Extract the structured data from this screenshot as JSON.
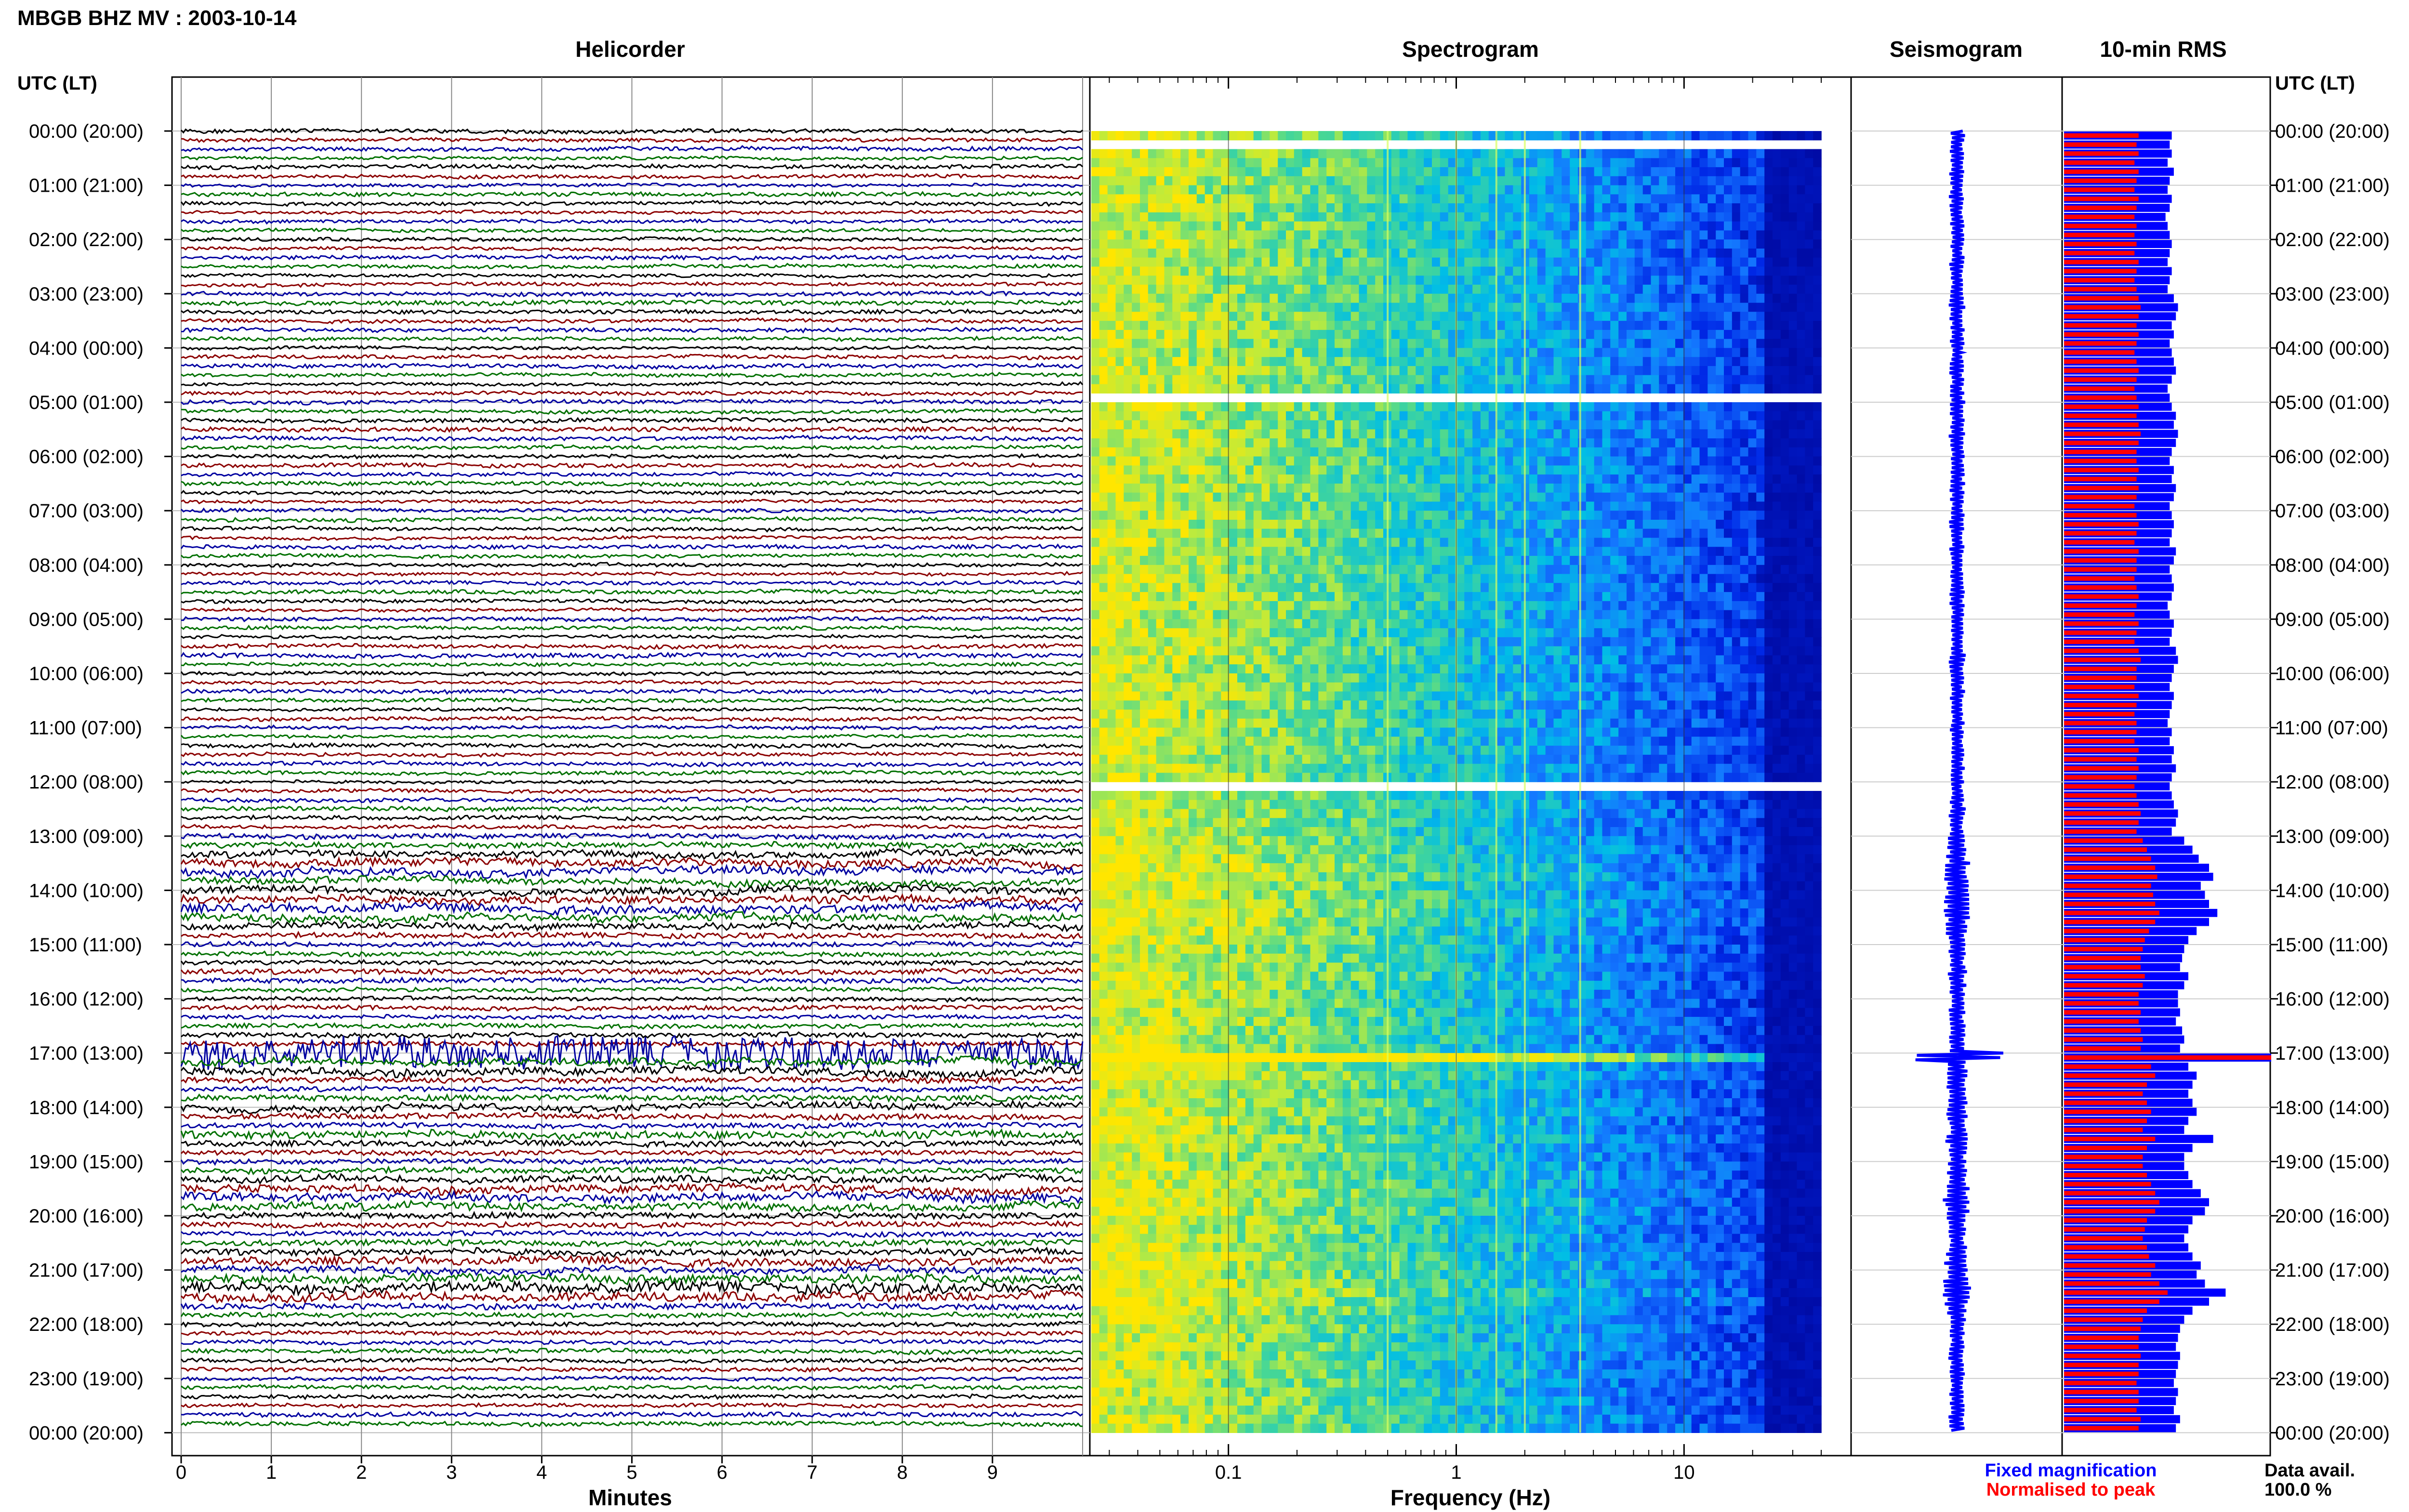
{
  "header": {
    "station": "MBGB BHZ MV : 2003-10-14"
  },
  "panels": {
    "helicorder_title": "Helicorder",
    "spectrogram_title": "Spectrogram",
    "seismogram_title": "Seismogram",
    "rms_title": "10-min RMS"
  },
  "axes": {
    "left_header": "UTC (LT)",
    "right_header": "UTC (LT)",
    "helicorder_xlabel": "Minutes",
    "spectrogram_xlabel": "Frequency (Hz)",
    "minute_ticks": [
      "0",
      "1",
      "2",
      "3",
      "4",
      "5",
      "6",
      "7",
      "8",
      "9"
    ],
    "frequency_ticks": [
      "0.1",
      "1",
      "10"
    ]
  },
  "legend": {
    "fixed": "Fixed magnification",
    "normalised": "Normalised to peak",
    "fixed_color": "#0000ff",
    "normalised_color": "#ff0000"
  },
  "availability": {
    "label": "Data avail.",
    "value": "100.0 %"
  },
  "colors": {
    "trace_colors": [
      "#000000",
      "#8b0000",
      "#0000a0",
      "#007000"
    ]
  },
  "chart_data": {
    "type": "heatmap",
    "hour_labels": [
      "00:00 (20:00)",
      "01:00 (21:00)",
      "02:00 (22:00)",
      "03:00 (23:00)",
      "04:00 (00:00)",
      "05:00 (01:00)",
      "06:00 (02:00)",
      "07:00 (03:00)",
      "08:00 (04:00)",
      "09:00 (05:00)",
      "10:00 (06:00)",
      "11:00 (07:00)",
      "12:00 (08:00)",
      "13:00 (09:00)",
      "14:00 (10:00)",
      "15:00 (11:00)",
      "16:00 (12:00)",
      "17:00 (13:00)",
      "18:00 (14:00)",
      "19:00 (15:00)",
      "20:00 (16:00)",
      "21:00 (17:00)",
      "22:00 (18:00)",
      "23:00 (19:00)",
      "00:00 (20:00)"
    ],
    "rows_per_hour": 6,
    "minutes_range": [
      0,
      10
    ],
    "frequency_range": [
      0.025,
      40
    ],
    "frequency_scale": "log",
    "data_gaps_hours": [
      0.2,
      4.75,
      12.0
    ],
    "rms_fixed": [
      0.52,
      0.51,
      0.52,
      0.5,
      0.53,
      0.51,
      0.5,
      0.52,
      0.51,
      0.49,
      0.5,
      0.51,
      0.52,
      0.51,
      0.5,
      0.52,
      0.51,
      0.5,
      0.53,
      0.55,
      0.54,
      0.52,
      0.53,
      0.51,
      0.52,
      0.53,
      0.54,
      0.52,
      0.5,
      0.51,
      0.52,
      0.54,
      0.53,
      0.55,
      0.54,
      0.52,
      0.51,
      0.53,
      0.52,
      0.54,
      0.53,
      0.51,
      0.52,
      0.53,
      0.52,
      0.51,
      0.54,
      0.53,
      0.51,
      0.52,
      0.53,
      0.52,
      0.5,
      0.51,
      0.53,
      0.52,
      0.51,
      0.54,
      0.55,
      0.53,
      0.52,
      0.51,
      0.53,
      0.52,
      0.51,
      0.5,
      0.52,
      0.51,
      0.53,
      0.52,
      0.54,
      0.52,
      0.51,
      0.52,
      0.53,
      0.55,
      0.54,
      0.52,
      0.58,
      0.62,
      0.65,
      0.7,
      0.72,
      0.66,
      0.68,
      0.7,
      0.74,
      0.7,
      0.64,
      0.6,
      0.58,
      0.57,
      0.56,
      0.6,
      0.58,
      0.55,
      0.55,
      0.56,
      0.54,
      0.57,
      0.58,
      0.56,
      1.0,
      0.6,
      0.64,
      0.62,
      0.6,
      0.62,
      0.64,
      0.6,
      0.58,
      0.72,
      0.62,
      0.58,
      0.58,
      0.6,
      0.62,
      0.66,
      0.7,
      0.68,
      0.62,
      0.6,
      0.58,
      0.6,
      0.62,
      0.66,
      0.64,
      0.68,
      0.78,
      0.7,
      0.62,
      0.58,
      0.56,
      0.55,
      0.54,
      0.56,
      0.55,
      0.54,
      0.53,
      0.55,
      0.54,
      0.53,
      0.56,
      0.54,
      0.52,
      0.53,
      0.54,
      0.53,
      0.52,
      0.51
    ],
    "rms_normalised": [
      0.36,
      0.35,
      0.36,
      0.34,
      0.36,
      0.35,
      0.34,
      0.36,
      0.35,
      0.34,
      0.35,
      0.34,
      0.35,
      0.34,
      0.36,
      0.35,
      0.34,
      0.35,
      0.36,
      0.37,
      0.36,
      0.35,
      0.36,
      0.35,
      0.34,
      0.35,
      0.36,
      0.35,
      0.34,
      0.35,
      0.36,
      0.35,
      0.36,
      0.37,
      0.36,
      0.35,
      0.35,
      0.36,
      0.35,
      0.36,
      0.35,
      0.34,
      0.35,
      0.36,
      0.35,
      0.34,
      0.36,
      0.35,
      0.35,
      0.34,
      0.35,
      0.36,
      0.35,
      0.34,
      0.36,
      0.35,
      0.34,
      0.36,
      0.37,
      0.35,
      0.35,
      0.34,
      0.36,
      0.35,
      0.34,
      0.35,
      0.35,
      0.34,
      0.36,
      0.35,
      0.36,
      0.35,
      0.34,
      0.35,
      0.36,
      0.37,
      0.36,
      0.35,
      0.38,
      0.4,
      0.42,
      0.44,
      0.45,
      0.42,
      0.43,
      0.44,
      0.46,
      0.44,
      0.41,
      0.39,
      0.38,
      0.37,
      0.37,
      0.39,
      0.38,
      0.36,
      0.36,
      0.37,
      0.36,
      0.37,
      0.38,
      0.37,
      1.0,
      0.42,
      0.44,
      0.4,
      0.38,
      0.4,
      0.42,
      0.4,
      0.38,
      0.44,
      0.4,
      0.38,
      0.38,
      0.4,
      0.42,
      0.44,
      0.46,
      0.44,
      0.4,
      0.39,
      0.38,
      0.4,
      0.41,
      0.44,
      0.42,
      0.46,
      0.5,
      0.46,
      0.4,
      0.38,
      0.37,
      0.36,
      0.36,
      0.37,
      0.36,
      0.36,
      0.35,
      0.36,
      0.36,
      0.35,
      0.37,
      0.36,
      0.35,
      0.36,
      0.36,
      0.35,
      0.35,
      0.34
    ]
  }
}
